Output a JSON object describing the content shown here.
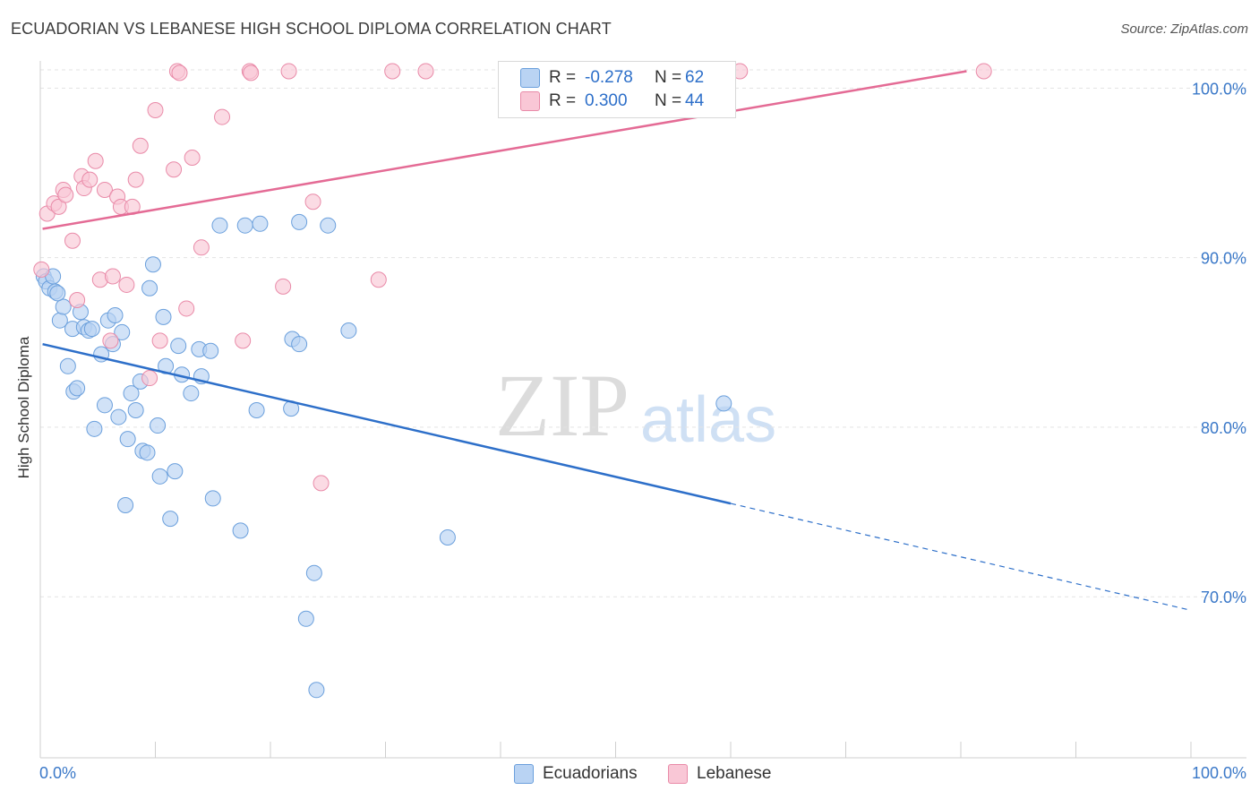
{
  "title": "ECUADORIAN VS LEBANESE HIGH SCHOOL DIPLOMA CORRELATION CHART",
  "source": "Source: ZipAtlas.com",
  "watermark": {
    "zip": "ZIP",
    "atlas": "atlas"
  },
  "colors": {
    "blue_fill": "#b9d3f3",
    "blue_stroke": "#6a9fdc",
    "blue_line": "#2d6fc9",
    "pink_fill": "#f9c7d6",
    "pink_stroke": "#e98aa8",
    "pink_line": "#e46b95",
    "grid": "#e3e3e3",
    "axis_label": "#3a78c8"
  },
  "legend": {
    "rows": [
      {
        "r_label": "R =",
        "r_value": "-0.278",
        "n_label": "N =",
        "n_value": "62",
        "swatch": "blue"
      },
      {
        "r_label": "R =",
        "r_value": "0.300",
        "n_label": "N =",
        "n_value": "44",
        "swatch": "pink"
      }
    ]
  },
  "bottom_legend": {
    "ecuadorians": "Ecuadorians",
    "lebanese": "Lebanese"
  },
  "chart_data": {
    "type": "scatter",
    "title": "ECUADORIAN VS LEBANESE HIGH SCHOOL DIPLOMA CORRELATION CHART",
    "xlabel": "",
    "ylabel": "High School Diploma",
    "xlim": [
      0,
      100
    ],
    "ylim": [
      60.5,
      101.5
    ],
    "x_tick_labels": [
      "0.0%",
      "100.0%"
    ],
    "y_ticks": [
      {
        "value": 70,
        "label": "70.0%"
      },
      {
        "value": 80,
        "label": "80.0%"
      },
      {
        "value": 90,
        "label": "90.0%"
      },
      {
        "value": 100,
        "label": "100.0%"
      }
    ],
    "grid": true,
    "series": [
      {
        "name": "Ecuadorians",
        "color": "blue",
        "r": -0.278,
        "n": 62,
        "trend": {
          "x0": 0.2,
          "y0": 84.9,
          "x1": 60,
          "y1": 75.5,
          "dash_to_x": 100,
          "dash_to_y": 69.2
        },
        "points": [
          [
            0.3,
            88.9
          ],
          [
            0.5,
            88.6
          ],
          [
            0.8,
            88.2
          ],
          [
            1.3,
            88.0
          ],
          [
            1.7,
            86.3
          ],
          [
            2.0,
            87.1
          ],
          [
            2.4,
            83.6
          ],
          [
            2.8,
            85.8
          ],
          [
            2.9,
            82.1
          ],
          [
            3.2,
            82.3
          ],
          [
            3.5,
            86.8
          ],
          [
            3.8,
            85.9
          ],
          [
            4.2,
            85.7
          ],
          [
            4.5,
            85.8
          ],
          [
            4.7,
            79.9
          ],
          [
            5.3,
            84.3
          ],
          [
            5.6,
            81.3
          ],
          [
            5.9,
            86.3
          ],
          [
            6.3,
            84.9
          ],
          [
            6.5,
            86.6
          ],
          [
            6.8,
            80.6
          ],
          [
            7.1,
            85.6
          ],
          [
            7.4,
            75.4
          ],
          [
            7.6,
            79.3
          ],
          [
            7.9,
            82.0
          ],
          [
            8.3,
            81.0
          ],
          [
            8.7,
            82.7
          ],
          [
            8.9,
            78.6
          ],
          [
            9.3,
            78.5
          ],
          [
            9.5,
            88.2
          ],
          [
            9.8,
            89.6
          ],
          [
            10.2,
            80.1
          ],
          [
            10.4,
            77.1
          ],
          [
            10.7,
            86.5
          ],
          [
            10.9,
            83.6
          ],
          [
            11.3,
            74.6
          ],
          [
            11.7,
            77.4
          ],
          [
            12.0,
            84.8
          ],
          [
            12.3,
            83.1
          ],
          [
            13.1,
            82.0
          ],
          [
            14.0,
            83.0
          ],
          [
            13.8,
            84.6
          ],
          [
            14.8,
            84.5
          ],
          [
            15.0,
            75.8
          ],
          [
            15.6,
            91.9
          ],
          [
            17.4,
            73.9
          ],
          [
            17.8,
            91.9
          ],
          [
            18.8,
            81.0
          ],
          [
            19.1,
            92.0
          ],
          [
            21.8,
            81.1
          ],
          [
            21.9,
            85.2
          ],
          [
            22.5,
            84.9
          ],
          [
            22.5,
            92.1
          ],
          [
            23.1,
            68.7
          ],
          [
            23.8,
            71.4
          ],
          [
            24.0,
            64.5
          ],
          [
            25.0,
            91.9
          ],
          [
            26.8,
            85.7
          ],
          [
            35.4,
            73.5
          ],
          [
            59.4,
            81.4
          ],
          [
            1.1,
            88.9
          ],
          [
            1.5,
            87.9
          ]
        ]
      },
      {
        "name": "Lebanese",
        "color": "pink",
        "r": 0.3,
        "n": 44,
        "trend": {
          "x0": 0.2,
          "y0": 91.7,
          "x1": 80.5,
          "y1": 101.0
        },
        "points": [
          [
            0.1,
            89.3
          ],
          [
            0.6,
            92.6
          ],
          [
            1.2,
            93.2
          ],
          [
            1.6,
            93.0
          ],
          [
            2.0,
            94.0
          ],
          [
            2.2,
            93.7
          ],
          [
            2.8,
            91.0
          ],
          [
            3.2,
            87.5
          ],
          [
            3.6,
            94.8
          ],
          [
            3.8,
            94.1
          ],
          [
            4.3,
            94.6
          ],
          [
            4.8,
            95.7
          ],
          [
            5.2,
            88.7
          ],
          [
            5.6,
            94.0
          ],
          [
            6.1,
            85.1
          ],
          [
            6.3,
            88.9
          ],
          [
            6.7,
            93.6
          ],
          [
            7.0,
            93.0
          ],
          [
            7.5,
            88.4
          ],
          [
            8.0,
            93.0
          ],
          [
            8.3,
            94.6
          ],
          [
            8.7,
            96.6
          ],
          [
            9.5,
            82.9
          ],
          [
            10.0,
            98.7
          ],
          [
            10.4,
            85.1
          ],
          [
            11.6,
            95.2
          ],
          [
            11.9,
            101.0
          ],
          [
            12.1,
            100.9
          ],
          [
            12.7,
            87.0
          ],
          [
            13.2,
            95.9
          ],
          [
            14.0,
            90.6
          ],
          [
            15.8,
            98.3
          ],
          [
            17.6,
            85.1
          ],
          [
            18.2,
            101.0
          ],
          [
            18.3,
            100.9
          ],
          [
            21.1,
            88.3
          ],
          [
            21.6,
            101.0
          ],
          [
            23.7,
            93.3
          ],
          [
            24.4,
            76.7
          ],
          [
            29.4,
            88.7
          ],
          [
            30.6,
            101.0
          ],
          [
            33.5,
            101.0
          ],
          [
            60.8,
            101.0
          ],
          [
            82.0,
            101.0
          ]
        ]
      }
    ]
  }
}
